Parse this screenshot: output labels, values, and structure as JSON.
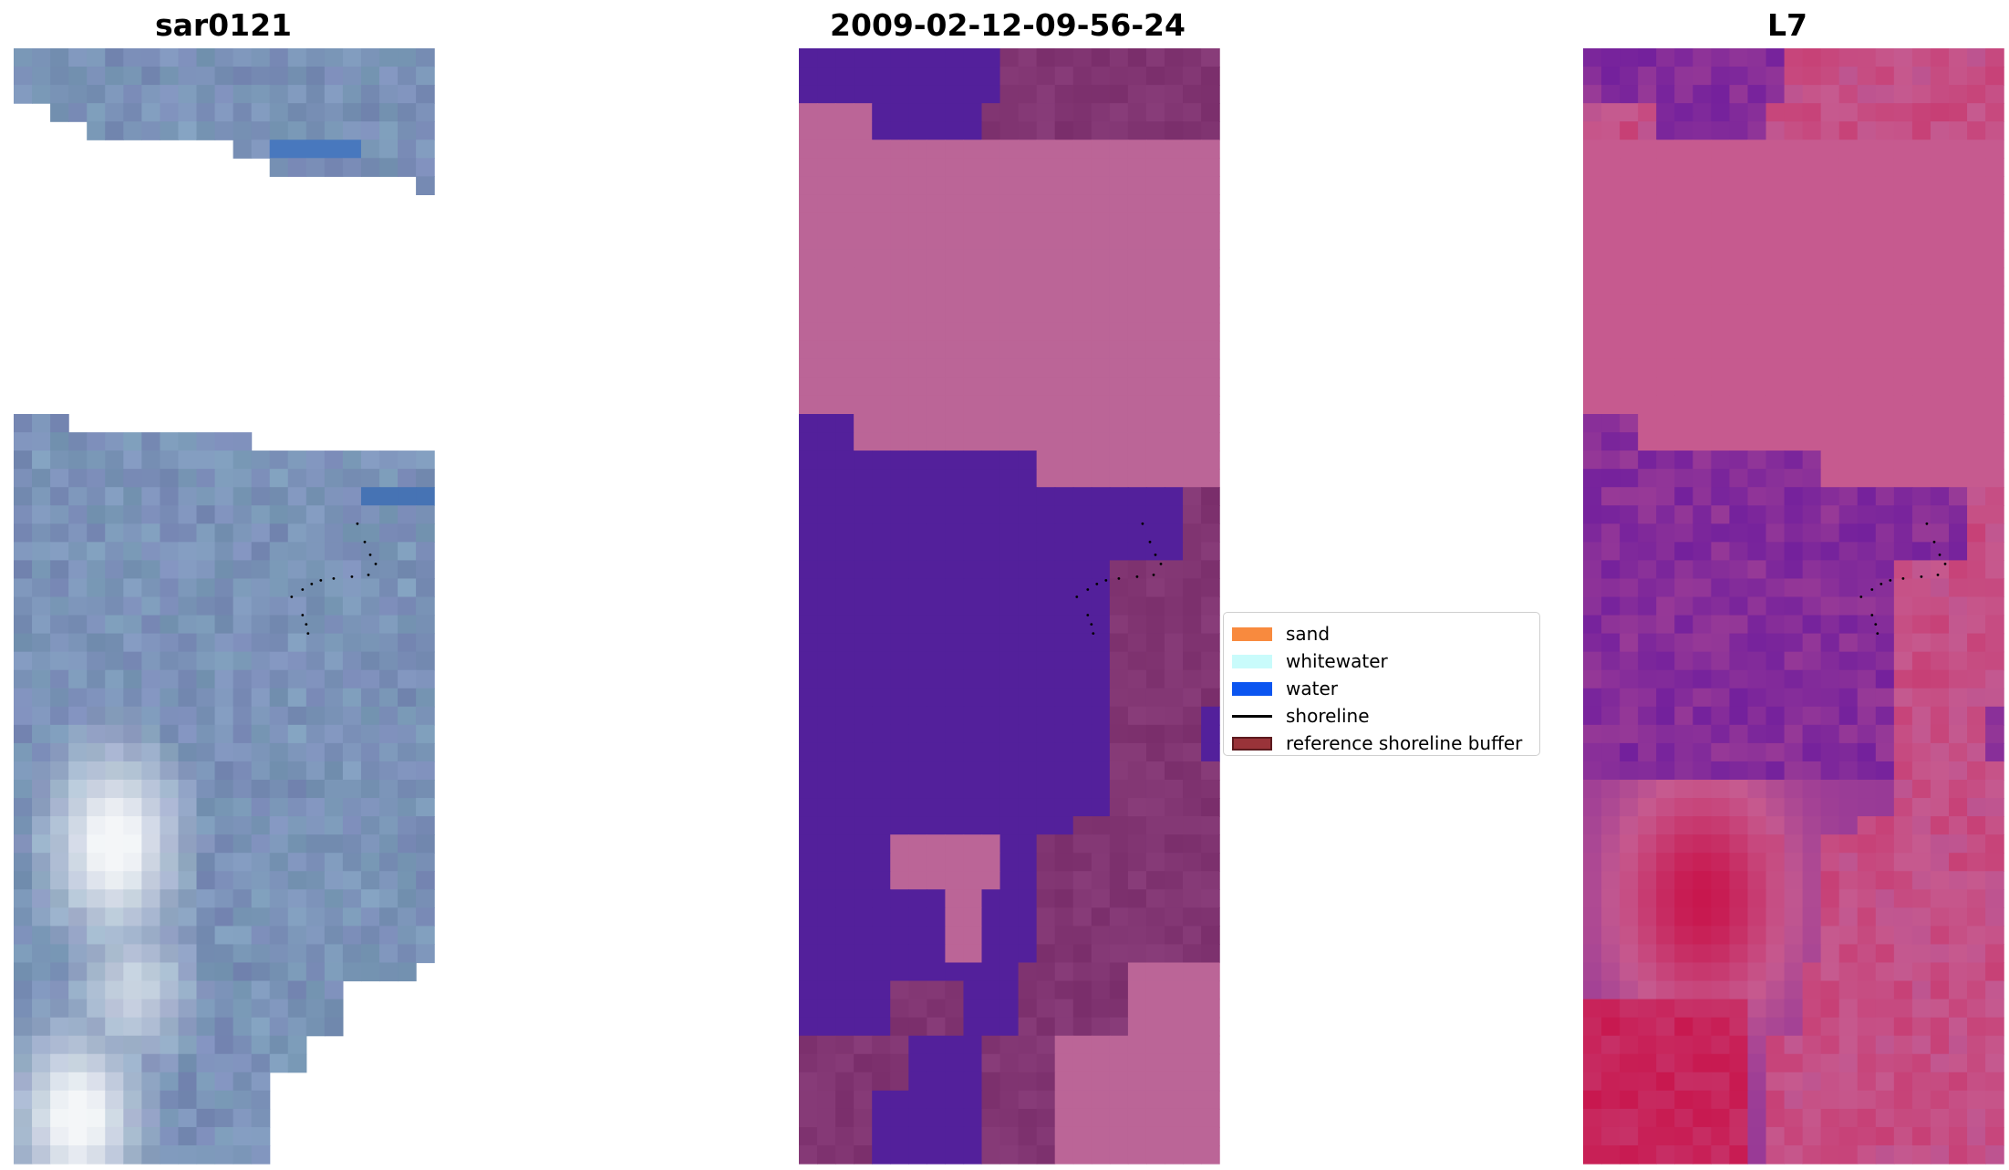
{
  "panels": [
    {
      "title": "sar0121"
    },
    {
      "title": "2009-02-12-09-56-24"
    },
    {
      "title": "L7"
    }
  ],
  "legend": {
    "items": [
      {
        "label": "sand",
        "color": "#f88a3e",
        "kind": "patch"
      },
      {
        "label": "whitewater",
        "color": "#c9fbfb",
        "kind": "patch"
      },
      {
        "label": "water",
        "color": "#0b55f0",
        "kind": "patch"
      },
      {
        "label": "shoreline",
        "color": "#000000",
        "kind": "line"
      },
      {
        "label": "reference shoreline buffer",
        "color": "#993339",
        "kind": "patch",
        "edge": "#5c1a1e"
      }
    ]
  },
  "colors": {
    "rgb_base": "#7b93b8",
    "rgb_bright": "#f4f6f8",
    "class_water": "#53209b",
    "class_sand": "#bb6597",
    "class_buffer": "#813572",
    "ndwi_low": "#6a1a9e",
    "ndwi_mid": "#c65a8f",
    "ndwi_high": "#c8174e",
    "shoreline_points": "#000000"
  }
}
